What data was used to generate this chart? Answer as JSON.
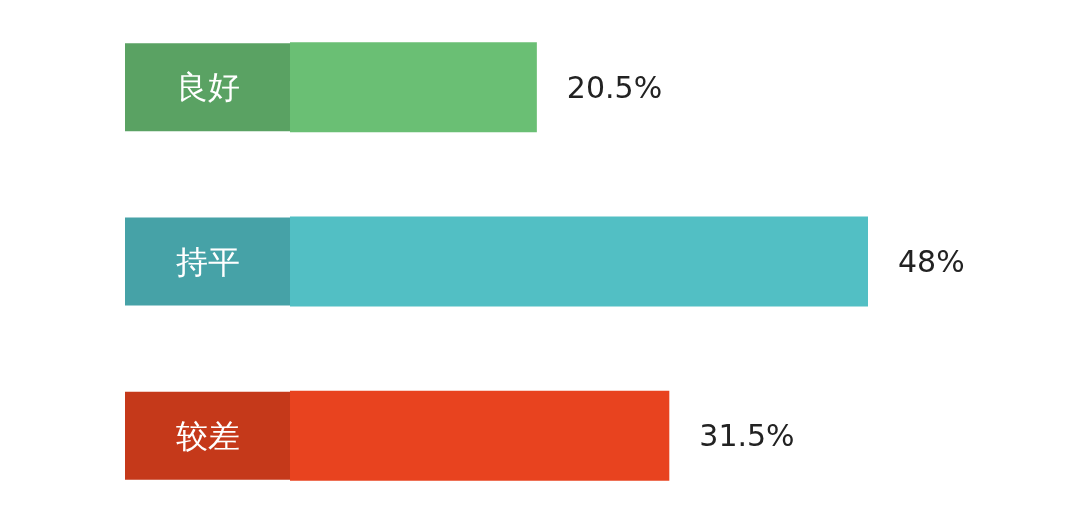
{
  "chart_data": {
    "type": "bar",
    "orientation": "horizontal",
    "categories": [
      "良好",
      "持平",
      "较差"
    ],
    "values": [
      20.5,
      48,
      31.5
    ],
    "colors": [
      "#6abf74",
      "#52bfc4",
      "#e8431f"
    ],
    "data_labels": true,
    "value_labels": [
      "20.5%",
      "48%",
      "31.5%"
    ]
  }
}
